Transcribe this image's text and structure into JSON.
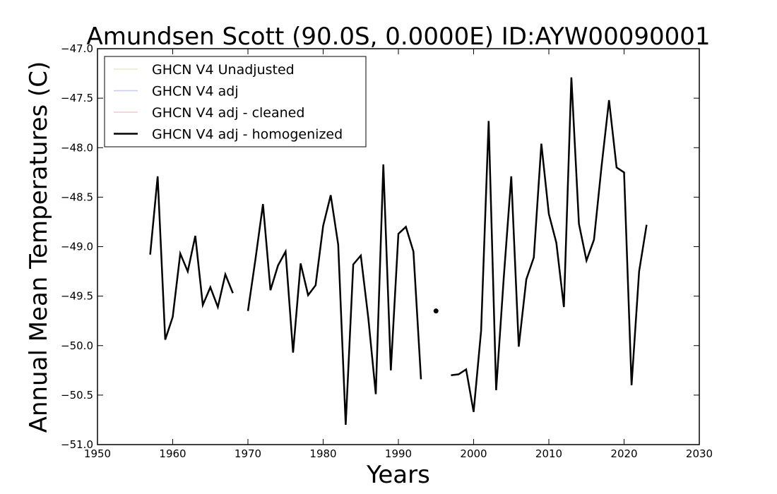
{
  "chart_data": {
    "type": "line",
    "title": "Amundsen Scott (90.0S, 0.0000E) ID:AYW00090001",
    "xlabel": "Years",
    "ylabel": "Annual Mean Temperatures (C)",
    "xlim": [
      1950,
      2030
    ],
    "ylim": [
      -51.0,
      -47.0
    ],
    "xticks": [
      "1950",
      "1960",
      "1970",
      "1980",
      "1990",
      "2000",
      "2010",
      "2020",
      "2030"
    ],
    "yticks": [
      "−47.0",
      "−47.5",
      "−48.0",
      "−48.5",
      "−49.0",
      "−49.5",
      "−50.0",
      "−50.5",
      "−51.0"
    ],
    "grid": false,
    "legend_position": "top-left",
    "series": [
      {
        "name": "GHCN V4 Unadjusted",
        "color": "#e8ebc8",
        "segments": []
      },
      {
        "name": "GHCN V4 adj",
        "color": "#c8c8f0",
        "segments": []
      },
      {
        "name": "GHCN V4 adj - cleaned",
        "color": "#f4c8c8",
        "segments": []
      },
      {
        "name": "GHCN V4 adj - homogenized",
        "color": "#000000",
        "segments": [
          [
            [
              1957,
              -49.08
            ],
            [
              1958,
              -48.29
            ],
            [
              1959,
              -49.94
            ],
            [
              1960,
              -49.71
            ],
            [
              1961,
              -49.07
            ],
            [
              1962,
              -49.25
            ],
            [
              1963,
              -48.89
            ],
            [
              1964,
              -49.59
            ],
            [
              1965,
              -49.41
            ],
            [
              1966,
              -49.61
            ],
            [
              1967,
              -49.28
            ],
            [
              1968,
              -49.47
            ]
          ],
          [
            [
              1970,
              -49.65
            ],
            [
              1971,
              -49.13
            ],
            [
              1972,
              -48.57
            ],
            [
              1973,
              -49.44
            ],
            [
              1974,
              -49.19
            ],
            [
              1975,
              -49.05
            ],
            [
              1976,
              -50.07
            ],
            [
              1977,
              -49.17
            ],
            [
              1978,
              -49.49
            ],
            [
              1979,
              -49.39
            ],
            [
              1980,
              -48.79
            ],
            [
              1981,
              -48.48
            ],
            [
              1982,
              -48.98
            ],
            [
              1983,
              -50.8
            ],
            [
              1984,
              -49.18
            ],
            [
              1985,
              -49.09
            ],
            [
              1986,
              -49.72
            ],
            [
              1987,
              -50.49
            ],
            [
              1988,
              -48.17
            ],
            [
              1989,
              -50.25
            ],
            [
              1990,
              -48.87
            ],
            [
              1991,
              -48.8
            ],
            [
              1992,
              -49.05
            ],
            [
              1993,
              -50.34
            ]
          ],
          [
            [
              1995,
              -49.65
            ]
          ],
          [
            [
              1997,
              -50.3
            ],
            [
              1998,
              -50.29
            ],
            [
              1999,
              -50.24
            ],
            [
              2000,
              -50.67
            ],
            [
              2001,
              -49.85
            ],
            [
              2002,
              -47.73
            ],
            [
              2003,
              -50.45
            ],
            [
              2004,
              -49.32
            ],
            [
              2005,
              -48.29
            ],
            [
              2006,
              -50.01
            ],
            [
              2007,
              -49.33
            ],
            [
              2008,
              -49.11
            ],
            [
              2009,
              -47.96
            ],
            [
              2010,
              -48.67
            ],
            [
              2011,
              -48.96
            ],
            [
              2012,
              -49.61
            ],
            [
              2013,
              -47.29
            ],
            [
              2014,
              -48.77
            ],
            [
              2015,
              -49.14
            ],
            [
              2016,
              -48.93
            ],
            [
              2017,
              -48.19
            ],
            [
              2018,
              -47.52
            ],
            [
              2019,
              -48.2
            ],
            [
              2020,
              -48.25
            ],
            [
              2021,
              -50.4
            ],
            [
              2022,
              -49.25
            ],
            [
              2023,
              -48.78
            ]
          ]
        ]
      }
    ]
  }
}
